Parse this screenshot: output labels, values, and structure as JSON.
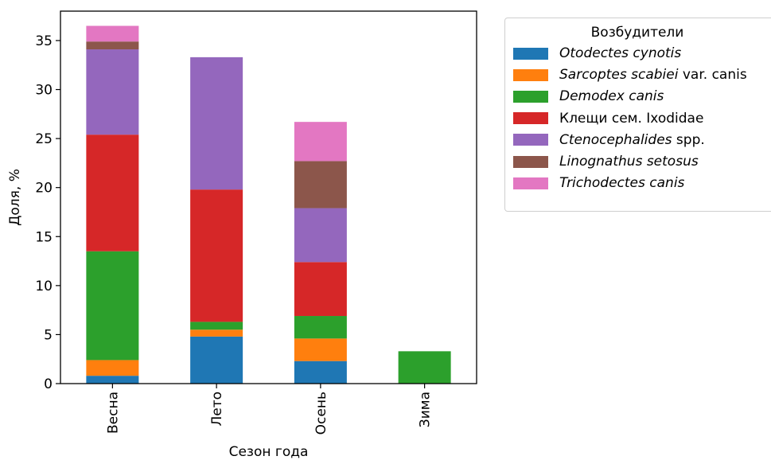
{
  "chart_data": {
    "type": "bar",
    "stacked": true,
    "xlabel": "Сезон года",
    "ylabel": "Доля, %",
    "ylim": [
      0,
      38
    ],
    "yticks": [
      0,
      5,
      10,
      15,
      20,
      25,
      30,
      35
    ],
    "categories": [
      "Весна",
      "Лето",
      "Осень",
      "Зима"
    ],
    "legend": {
      "title": "Возбудители",
      "placement": "outside-right"
    },
    "series": [
      {
        "name": "Otodectes cynotis",
        "name_parts": [
          {
            "text": "Otodectes cynotis",
            "italic": true
          }
        ],
        "color": "#1f77b4",
        "values": [
          0.8,
          4.8,
          2.3,
          0
        ]
      },
      {
        "name": "Sarcoptes scabiei var. canis",
        "name_parts": [
          {
            "text": "Sarcoptes scabiei",
            "italic": true
          },
          {
            "text": " var. canis",
            "italic": false
          }
        ],
        "color": "#ff7f0e",
        "values": [
          1.6,
          0.7,
          2.3,
          0
        ]
      },
      {
        "name": "Demodex canis",
        "name_parts": [
          {
            "text": "Demodex canis",
            "italic": true
          }
        ],
        "color": "#2ca02c",
        "values": [
          11.1,
          0.8,
          2.3,
          3.3
        ]
      },
      {
        "name": "Клещи сем. Ixodidae",
        "name_parts": [
          {
            "text": "Клещи сем. Ixodidae",
            "italic": false
          }
        ],
        "color": "#d62728",
        "values": [
          11.9,
          13.5,
          5.5,
          0
        ]
      },
      {
        "name": "Ctenocephalides spp.",
        "name_parts": [
          {
            "text": "Ctenocephalides",
            "italic": true
          },
          {
            "text": " spp.",
            "italic": false
          }
        ],
        "color": "#9467bd",
        "values": [
          8.7,
          13.5,
          5.5,
          0
        ]
      },
      {
        "name": "Linognathus setosus",
        "name_parts": [
          {
            "text": "Linognathus setosus",
            "italic": true
          }
        ],
        "color": "#8c564b",
        "values": [
          0.8,
          0,
          4.8,
          0
        ]
      },
      {
        "name": "Trichodectes canis",
        "name_parts": [
          {
            "text": "Trichodectes canis",
            "italic": true
          }
        ],
        "color": "#e377c2",
        "values": [
          1.6,
          0,
          4.0,
          0
        ]
      }
    ]
  }
}
